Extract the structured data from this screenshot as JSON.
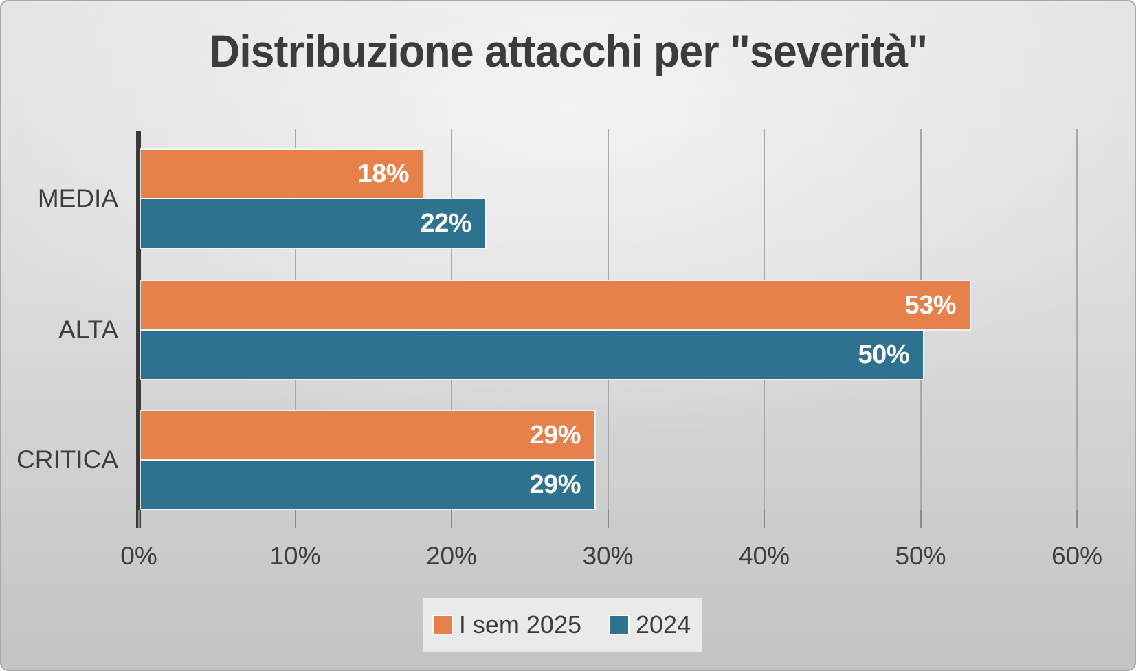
{
  "title": "Distribuzione attacchi per \"severità\"",
  "colors": {
    "series_2025": "#E6814B",
    "series_2024": "#2F7290",
    "text": "#3d3d3d",
    "gridline": "#a8a8a8",
    "axis_line": "#3a3a3a",
    "bar_value_text": "#ffffff",
    "legend_background": "#eaeaea"
  },
  "x_axis": {
    "tick_labels": [
      "0%",
      "10%",
      "20%",
      "30%",
      "40%",
      "50%",
      "60%"
    ]
  },
  "legend": {
    "items": [
      {
        "label": "I sem 2025",
        "color": "#E6814B"
      },
      {
        "label": "2024",
        "color": "#2F7290"
      }
    ]
  },
  "chart_data": {
    "type": "bar",
    "orientation": "horizontal",
    "title": "Distribuzione attacchi per \"severità\"",
    "categories": [
      "MEDIA",
      "ALTA",
      "CRITICA"
    ],
    "series": [
      {
        "name": "I sem 2025",
        "color": "#E6814B",
        "values": [
          18,
          53,
          29
        ],
        "labels": [
          "18%",
          "53%",
          "29%"
        ]
      },
      {
        "name": "2024",
        "color": "#2F7290",
        "values": [
          22,
          50,
          29
        ],
        "labels": [
          "22%",
          "50%",
          "29%"
        ]
      }
    ],
    "value_suffix": "%",
    "xlabel": "",
    "ylabel": "",
    "xlim": [
      0,
      60
    ],
    "x_tick_step": 10,
    "grid": true,
    "legend_position": "bottom",
    "value_labels_inside_bar_end": true
  }
}
